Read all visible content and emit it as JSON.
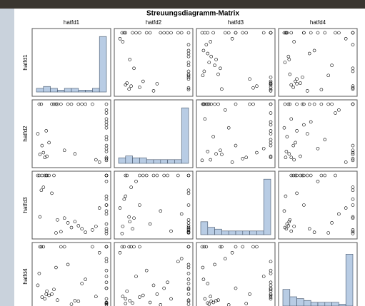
{
  "chart_data": {
    "type": "scatter-matrix",
    "title": "Streuungsdiagramm-Matrix",
    "series": [
      {
        "name": "hatfd1",
        "values": [
          1,
          1,
          0.12,
          0.35,
          1,
          0.05,
          0.6,
          1,
          0.22,
          1,
          0.08,
          0.45,
          1,
          0.15,
          0.8,
          1,
          0.3,
          0.02,
          1,
          0.5,
          1,
          0.18,
          0.7,
          0.1,
          1,
          0.25,
          0.9,
          1,
          0.04,
          0.4,
          1,
          0.65,
          0.14,
          1,
          0.28,
          0.55,
          1,
          0.07,
          0.85,
          1
        ]
      },
      {
        "name": "hatfd2",
        "values": [
          0.2,
          1,
          0.1,
          1,
          0.4,
          0.15,
          1,
          0.7,
          1,
          0.05,
          0.3,
          1,
          0.6,
          0.12,
          1,
          0.25,
          1,
          0.5,
          0.08,
          1,
          0.9,
          0.35,
          1,
          0.18,
          0.45,
          1,
          0.02,
          0.75,
          1,
          0.22,
          0.1,
          1,
          0.55,
          0.3,
          1,
          0.16,
          0.65,
          1,
          0.06,
          0.85
        ]
      },
      {
        "name": "hatfd3",
        "values": [
          0.1,
          0.5,
          1,
          0.05,
          1,
          0.3,
          0.15,
          1,
          0.7,
          0.02,
          1,
          0.2,
          0.4,
          1,
          0.08,
          0.9,
          0.25,
          1,
          0.6,
          0.12,
          0.35,
          1,
          0.04,
          0.8,
          0.18,
          1,
          0.45,
          0.06,
          1,
          0.28,
          0.65,
          0.1,
          1,
          0.5,
          0.03,
          0.22,
          1,
          0.75,
          0.14,
          1
        ]
      },
      {
        "name": "hatfd4",
        "values": [
          0.05,
          0.3,
          0.12,
          1,
          0.6,
          1,
          0.08,
          0.4,
          0.2,
          1,
          0.15,
          0.7,
          0.02,
          0.25,
          1,
          0.5,
          0.1,
          0.35,
          1,
          0.03,
          0.8,
          0.18,
          0.45,
          1,
          0.06,
          0.28,
          0.9,
          0.12,
          0.55,
          1,
          0.04,
          0.38,
          0.2,
          1,
          0.65,
          0.09,
          0.3,
          1,
          0.16,
          0.75
        ]
      }
    ],
    "histograms": [
      {
        "bins": [
          0,
          0.1,
          0.2,
          0.3,
          0.4,
          0.5,
          0.6,
          0.7,
          0.8,
          0.9,
          1
        ],
        "counts": [
          2,
          3,
          2,
          1,
          2,
          2,
          1,
          1,
          2,
          30
        ]
      },
      {
        "bins": [
          0,
          0.1,
          0.2,
          0.3,
          0.4,
          0.5,
          0.6,
          0.7,
          0.8,
          0.9,
          1
        ],
        "counts": [
          3,
          4,
          3,
          3,
          2,
          2,
          2,
          2,
          2,
          30
        ]
      },
      {
        "bins": [
          0,
          0.1,
          0.2,
          0.3,
          0.4,
          0.5,
          0.6,
          0.7,
          0.8,
          0.9,
          1
        ],
        "counts": [
          7,
          4,
          3,
          2,
          2,
          2,
          2,
          2,
          2,
          30
        ]
      },
      {
        "bins": [
          0,
          0.1,
          0.2,
          0.3,
          0.4,
          0.5,
          0.6,
          0.7,
          0.8,
          0.9,
          1
        ],
        "counts": [
          9,
          5,
          4,
          3,
          2,
          2,
          2,
          2,
          1,
          28
        ]
      }
    ],
    "xlim": [
      0,
      1
    ],
    "ylim": [
      0,
      1
    ],
    "hist_ylim": [
      0,
      32
    ],
    "point_color": "#000000",
    "bar_color": "#b8cce4"
  }
}
